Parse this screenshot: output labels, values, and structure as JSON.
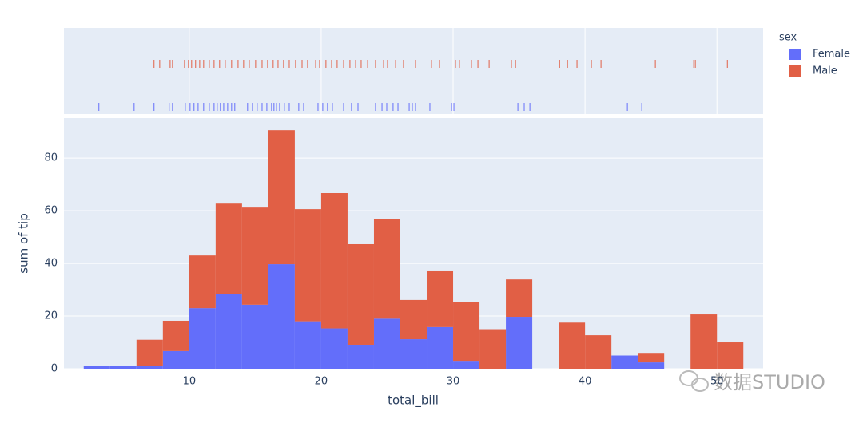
{
  "chart_data": {
    "type": "histogram",
    "xlabel": "total_bill",
    "ylabel": "sum of tip",
    "legend_title": "sex",
    "bins": [
      2,
      4,
      6,
      8,
      10,
      12,
      14,
      16,
      18,
      20,
      22,
      24,
      26,
      28,
      30,
      32,
      34,
      36,
      38,
      40,
      42,
      44,
      46,
      48,
      50,
      52
    ],
    "series": [
      {
        "name": "Female",
        "color": "#636efa",
        "values": [
          1,
          1,
          1,
          6.7,
          23,
          28.5,
          24.3,
          39.7,
          18,
          15.3,
          9.1,
          19,
          11.2,
          15.8,
          3,
          0,
          19.7,
          0,
          0,
          0,
          5,
          2.4,
          0,
          0,
          0
        ],
        "rug": [
          3.15,
          5.82,
          7.33,
          8.48,
          8.73,
          9.7,
          10.06,
          10.36,
          10.67,
          11.09,
          11.52,
          11.88,
          12.12,
          12.36,
          12.61,
          12.91,
          13.21,
          13.45,
          14.42,
          14.79,
          15.15,
          15.52,
          15.88,
          16.24,
          16.42,
          16.61,
          16.85,
          17.21,
          17.58,
          18.3,
          18.67,
          19.76,
          20.12,
          20.48,
          20.85,
          21.7,
          22.3,
          22.79,
          24.12,
          24.61,
          24.97,
          25.45,
          25.82,
          26.67,
          26.91,
          27.15,
          28.24,
          29.88,
          30.06,
          34.91,
          35.39,
          35.82,
          43.21,
          44.3
        ]
      },
      {
        "name": "Male",
        "color": "#e15f45",
        "values": [
          0,
          0,
          10,
          11.5,
          20,
          34.5,
          37.2,
          50.9,
          42.6,
          51.4,
          38.2,
          37.7,
          14.9,
          21.5,
          22.2,
          15,
          14.2,
          0,
          17.5,
          12.7,
          0,
          3.6,
          0,
          20.6,
          10
        ],
        "rug": [
          7.33,
          7.76,
          8.55,
          8.73,
          9.64,
          9.94,
          10.18,
          10.48,
          10.79,
          11.09,
          11.52,
          11.88,
          12.3,
          12.73,
          13.21,
          13.7,
          14.12,
          14.55,
          15.03,
          15.52,
          15.94,
          16.36,
          16.73,
          17.15,
          17.58,
          18.06,
          18.55,
          18.97,
          19.58,
          19.88,
          20.36,
          20.79,
          21.21,
          21.7,
          22.18,
          22.61,
          23.03,
          23.52,
          24.12,
          24.73,
          25.03,
          25.64,
          26.24,
          27.15,
          28.36,
          28.97,
          30.18,
          30.48,
          31.39,
          31.88,
          32.73,
          34.42,
          34.73,
          38.07,
          38.67,
          39.39,
          40.48,
          41.21,
          45.33,
          48.24,
          48.36,
          50.79
        ]
      }
    ],
    "xlim": [
      0.5,
      53.5
    ],
    "xticks": [
      10,
      20,
      30,
      40,
      50
    ],
    "ylim": [
      0,
      95.2
    ],
    "yticks": [
      0,
      20,
      40,
      60,
      80
    ],
    "grid": true,
    "legend_position": "right",
    "watermark": "数据STUDIO"
  }
}
